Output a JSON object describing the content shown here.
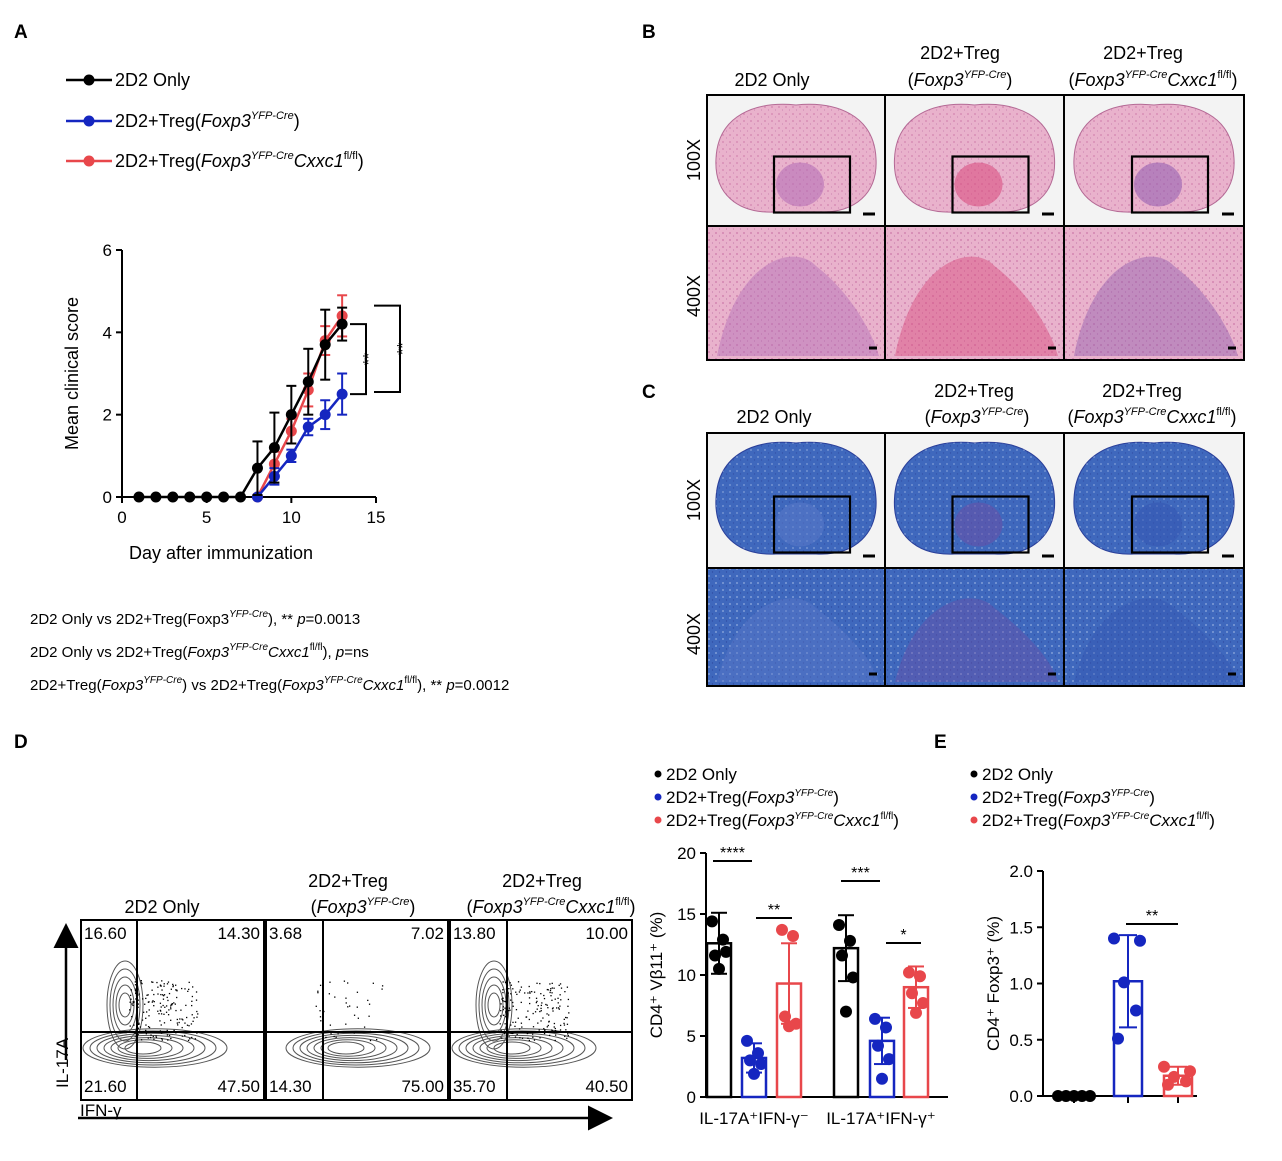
{
  "panel_labels": {
    "a": "A",
    "b": "B",
    "c": "C",
    "d": "D",
    "e": "E"
  },
  "colors": {
    "black": "#000000",
    "blue": "#1526c0",
    "red": "#e8474b",
    "he_pink": "#e7a9c6",
    "he_dark": "#c85a96",
    "lfb_blue": "#3a61b8",
    "lfb_dark": "#2a3f9a"
  },
  "legend": {
    "only": "2D2 Only",
    "treg_prefix": "2D2+Treg(",
    "foxp3": "Foxp3",
    "yfp_cre": "YFP-Cre",
    "cxxc1": "Cxxc1",
    "flfl": "fl/fl",
    "close_paren": ")"
  },
  "stats": {
    "line1_a": "2D2 Only vs 2D2+Treg(Foxp3",
    "line1_b": "), ** ",
    "line1_c": "=0.0013",
    "line2_a": "2D2 Only vs 2D2+Treg(",
    "line2_b": "),  ",
    "line2_c": "=ns",
    "line3_a": "2D2+Treg(",
    "line3_b": ") vs 2D2+Treg(",
    "line3_c": "), ** ",
    "line3_d": "=0.0012",
    "p": "p"
  },
  "histology": {
    "col_only": "2D2 Only",
    "col_treg": "2D2+Treg",
    "mag_100": "100X",
    "mag_400": "400X"
  },
  "flow": {
    "title_only": "2D2 Only",
    "title_treg": "2D2+Treg",
    "y_axis": "IL-17A",
    "x_axis": "IFN-γ",
    "quadrants": [
      [
        "16.60",
        "14.30",
        "21.60",
        "47.50"
      ],
      [
        "3.68",
        "7.02",
        "14.30",
        "75.00"
      ],
      [
        "13.80",
        "10.00",
        "35.70",
        "40.50"
      ]
    ]
  },
  "chart_data": [
    {
      "panel": "A",
      "type": "line",
      "title": "",
      "xlabel": "Day after immunization",
      "ylabel": "Mean clinical score",
      "xlim": [
        0,
        15
      ],
      "ylim": [
        0,
        6
      ],
      "xticks": [
        0,
        5,
        10,
        15
      ],
      "yticks": [
        0,
        2,
        4,
        6
      ],
      "series": [
        {
          "name": "2D2 Only",
          "color": "#000000",
          "x": [
            1,
            2,
            3,
            4,
            5,
            6,
            7,
            8,
            9,
            10,
            11,
            12,
            13
          ],
          "y": [
            0,
            0,
            0,
            0,
            0,
            0,
            0,
            0.7,
            1.2,
            2.0,
            2.8,
            3.7,
            4.2
          ],
          "err": [
            0,
            0,
            0,
            0,
            0,
            0,
            0,
            0.65,
            0.85,
            0.7,
            0.8,
            0.85,
            0.4
          ]
        },
        {
          "name": "2D2+Treg(Foxp3YFP-Cre)",
          "color": "#1526c0",
          "x": [
            8,
            9,
            10,
            11,
            12,
            13
          ],
          "y": [
            0,
            0.5,
            1.0,
            1.7,
            2.0,
            2.5
          ],
          "err": [
            0,
            0.2,
            0.15,
            0.2,
            0.35,
            0.5
          ]
        },
        {
          "name": "2D2+Treg(Foxp3YFP-CreCxxc1fl/fl)",
          "color": "#e8474b",
          "x": [
            8,
            9,
            10,
            11,
            12,
            13
          ],
          "y": [
            0,
            0.8,
            1.6,
            2.6,
            3.8,
            4.4
          ],
          "err": [
            0,
            0.3,
            0.3,
            0.4,
            0.35,
            0.5
          ]
        }
      ],
      "significance": [
        "**",
        "**"
      ]
    },
    {
      "panel": "D",
      "type": "bar",
      "ylabel": "CD4⁺ Vβ11⁺ (%)",
      "ylim": [
        0,
        20
      ],
      "yticks": [
        0,
        5,
        10,
        15,
        20
      ],
      "categories": [
        "IL-17A⁺IFN-γ⁻",
        "IL-17A⁺IFN-γ⁺"
      ],
      "series": [
        {
          "name": "2D2 Only",
          "color": "#000000",
          "values": [
            12.6,
            12.2
          ],
          "err": [
            2.5,
            2.7
          ],
          "points": [
            [
              14.4,
              12.9,
              11.6,
              11.9,
              10.5
            ],
            [
              14.1,
              12.8,
              11.6,
              9.8,
              7.0
            ]
          ]
        },
        {
          "name": "2D2+Treg(Foxp3YFP-Cre)",
          "color": "#1526c0",
          "values": [
            3.2,
            4.6
          ],
          "err": [
            1.2,
            1.9
          ],
          "points": [
            [
              4.6,
              3.6,
              3.0,
              2.7,
              1.9
            ],
            [
              6.4,
              5.7,
              4.2,
              3.1,
              1.5
            ]
          ]
        },
        {
          "name": "2D2+Treg(Foxp3YFP-CreCxxc1fl/fl)",
          "color": "#e8474b",
          "values": [
            9.3,
            9.0
          ],
          "err": [
            3.3,
            1.7
          ],
          "points": [
            [
              13.7,
              13.2,
              6.6,
              6.0,
              5.8
            ],
            [
              10.2,
              9.9,
              8.5,
              7.7,
              6.9
            ]
          ]
        }
      ],
      "significance": [
        "****",
        "**",
        "***",
        "*"
      ]
    },
    {
      "panel": "E",
      "type": "bar",
      "ylabel": "CD4⁺ Foxp3⁺ (%)",
      "ylim": [
        0,
        2.0
      ],
      "yticks": [
        "0.0",
        "0.5",
        "1.0",
        "1.5",
        "2.0"
      ],
      "series": [
        {
          "name": "2D2 Only",
          "color": "#000000",
          "value": 0.0,
          "err": 0.0,
          "points": [
            0,
            0,
            0,
            0,
            0
          ]
        },
        {
          "name": "2D2+Treg(Foxp3YFP-Cre)",
          "color": "#1526c0",
          "value": 1.02,
          "err": 0.41,
          "points": [
            1.4,
            1.38,
            1.01,
            0.76,
            0.51
          ]
        },
        {
          "name": "2D2+Treg(Foxp3YFP-CreCxxc1fl/fl)",
          "color": "#e8474b",
          "value": 0.18,
          "err": 0.08,
          "points": [
            0.26,
            0.22,
            0.17,
            0.13,
            0.1
          ]
        }
      ],
      "significance": [
        "**"
      ]
    }
  ]
}
